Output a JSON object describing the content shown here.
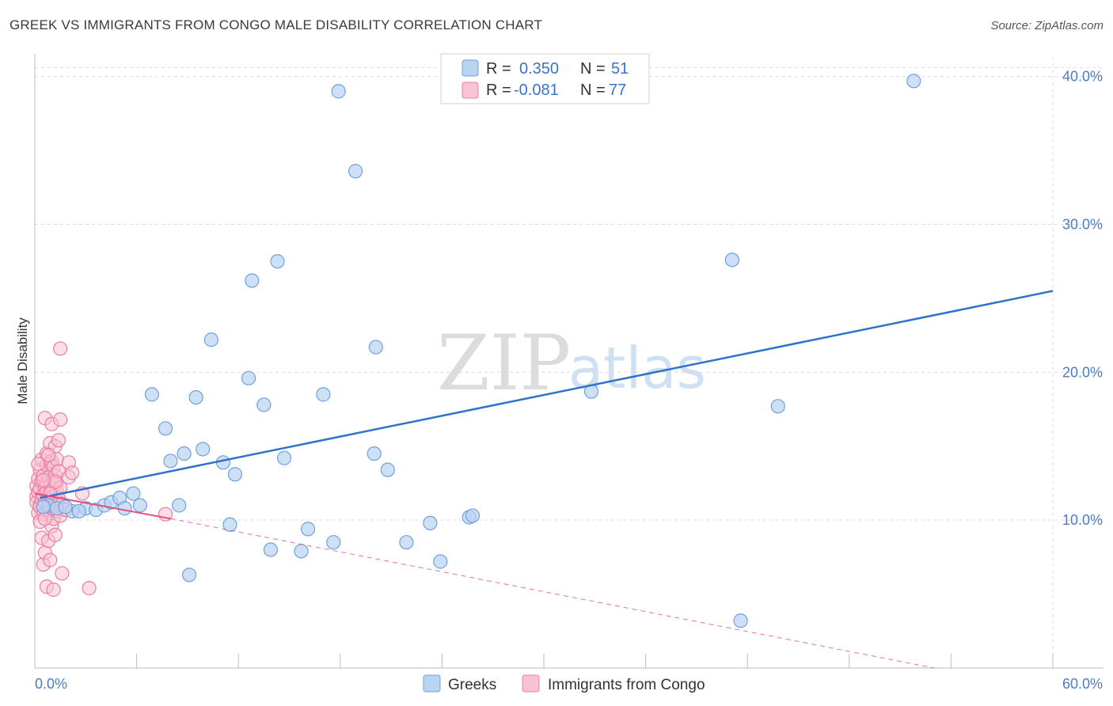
{
  "title": "GREEK VS IMMIGRANTS FROM CONGO MALE DISABILITY CORRELATION CHART",
  "source": "Source: ZipAtlas.com",
  "watermark": {
    "zip": "ZIP",
    "atlas": "atlas"
  },
  "legend_top": [
    {
      "r_label": "R = ",
      "r_value": "0.350",
      "n_label": "N = ",
      "n_value": "51"
    },
    {
      "r_label": "R = ",
      "r_value": "-0.081",
      "n_label": "N = ",
      "n_value": "77"
    }
  ],
  "legend_bottom": [
    "Greeks",
    "Immigrants from Congo"
  ],
  "colors": {
    "greeks_fill": "#b9d3f2",
    "greeks_stroke": "#6fa0dd",
    "greeks_line": "#2f72cc",
    "congo_fill": "#f8c3d3",
    "congo_stroke": "#ea7fa0",
    "congo_line": "#e0507e",
    "grid": "#dddddd",
    "axis_text": "#4a7cc7"
  },
  "chart_data": {
    "type": "scatter",
    "title": "GREEK VS IMMIGRANTS FROM CONGO MALE DISABILITY CORRELATION CHART",
    "xlabel": "",
    "ylabel": "Male Disability",
    "xlim": [
      0,
      60
    ],
    "ylim": [
      0,
      41
    ],
    "x_tick_labels": [
      "0.0%",
      "60.0%"
    ],
    "y_ticks": [
      10,
      20,
      30,
      40
    ],
    "y_tick_labels": [
      "10.0%",
      "20.0%",
      "30.0%",
      "40.0%"
    ],
    "series": [
      {
        "name": "Greeks",
        "R": 0.35,
        "N": 51,
        "trend": {
          "x": [
            0.3,
            60
          ],
          "y": [
            11.5,
            25.5
          ]
        },
        "points": [
          [
            0.8,
            11.0
          ],
          [
            1.3,
            10.8
          ],
          [
            2.2,
            10.6
          ],
          [
            3.0,
            10.8
          ],
          [
            3.6,
            10.7
          ],
          [
            4.1,
            11.0
          ],
          [
            4.5,
            11.2
          ],
          [
            5.0,
            11.5
          ],
          [
            5.3,
            10.8
          ],
          [
            5.8,
            11.8
          ],
          [
            6.2,
            11.0
          ],
          [
            6.9,
            18.5
          ],
          [
            7.7,
            16.2
          ],
          [
            8.0,
            14.0
          ],
          [
            8.5,
            11.0
          ],
          [
            8.8,
            14.5
          ],
          [
            9.1,
            6.3
          ],
          [
            9.5,
            18.3
          ],
          [
            9.9,
            14.8
          ],
          [
            10.4,
            22.2
          ],
          [
            11.1,
            13.9
          ],
          [
            11.5,
            9.7
          ],
          [
            11.8,
            13.1
          ],
          [
            12.6,
            19.6
          ],
          [
            12.8,
            26.2
          ],
          [
            13.5,
            17.8
          ],
          [
            13.9,
            8.0
          ],
          [
            14.3,
            27.5
          ],
          [
            14.7,
            14.2
          ],
          [
            15.7,
            7.9
          ],
          [
            16.1,
            9.4
          ],
          [
            17.0,
            18.5
          ],
          [
            17.6,
            8.5
          ],
          [
            17.9,
            39.0
          ],
          [
            18.9,
            33.6
          ],
          [
            20.0,
            14.5
          ],
          [
            20.1,
            21.7
          ],
          [
            20.8,
            13.4
          ],
          [
            21.9,
            8.5
          ],
          [
            23.3,
            9.8
          ],
          [
            23.9,
            7.2
          ],
          [
            25.6,
            10.2
          ],
          [
            25.8,
            10.3
          ],
          [
            32.8,
            18.7
          ],
          [
            41.1,
            27.6
          ],
          [
            41.6,
            3.2
          ],
          [
            43.8,
            17.7
          ],
          [
            51.8,
            39.7
          ],
          [
            2.6,
            10.6
          ],
          [
            1.8,
            10.9
          ],
          [
            0.5,
            10.9
          ]
        ]
      },
      {
        "name": "Immigrants from Congo",
        "R": -0.081,
        "N": 77,
        "trend": {
          "x": [
            0.0,
            8.0
          ],
          "y": [
            11.8,
            10.1
          ]
        },
        "trend_ext": {
          "x": [
            8.0,
            53.0
          ],
          "y": [
            10.1,
            0.0
          ]
        },
        "points": [
          [
            0.1,
            11.6
          ],
          [
            0.1,
            12.3
          ],
          [
            0.1,
            11.2
          ],
          [
            0.2,
            10.5
          ],
          [
            0.2,
            12.8
          ],
          [
            0.2,
            11.9
          ],
          [
            0.3,
            13.4
          ],
          [
            0.3,
            11.0
          ],
          [
            0.3,
            12.1
          ],
          [
            0.3,
            10.9
          ],
          [
            0.4,
            14.1
          ],
          [
            0.4,
            11.4
          ],
          [
            0.4,
            12.6
          ],
          [
            0.4,
            8.8
          ],
          [
            0.5,
            13.0
          ],
          [
            0.5,
            11.7
          ],
          [
            0.5,
            10.4
          ],
          [
            0.5,
            7.0
          ],
          [
            0.6,
            16.9
          ],
          [
            0.6,
            12.2
          ],
          [
            0.6,
            11.2
          ],
          [
            0.6,
            7.8
          ],
          [
            0.7,
            14.5
          ],
          [
            0.7,
            13.7
          ],
          [
            0.7,
            12.5
          ],
          [
            0.7,
            11.9
          ],
          [
            0.7,
            5.5
          ],
          [
            0.8,
            12.9
          ],
          [
            0.8,
            11.5
          ],
          [
            0.8,
            10.7
          ],
          [
            0.8,
            8.6
          ],
          [
            0.9,
            15.2
          ],
          [
            0.9,
            13.9
          ],
          [
            0.9,
            12.4
          ],
          [
            0.9,
            7.3
          ],
          [
            1.0,
            16.5
          ],
          [
            1.0,
            14.0
          ],
          [
            1.0,
            12.0
          ],
          [
            1.0,
            11.0
          ],
          [
            1.0,
            9.6
          ],
          [
            1.1,
            13.6
          ],
          [
            1.1,
            12.7
          ],
          [
            1.1,
            11.6
          ],
          [
            1.1,
            10.1
          ],
          [
            1.1,
            5.3
          ],
          [
            1.2,
            15.0
          ],
          [
            1.2,
            13.0
          ],
          [
            1.2,
            11.2
          ],
          [
            1.2,
            9.0
          ],
          [
            1.3,
            14.1
          ],
          [
            1.3,
            12.5
          ],
          [
            1.3,
            11.9
          ],
          [
            1.3,
            10.6
          ],
          [
            1.4,
            15.4
          ],
          [
            1.4,
            13.3
          ],
          [
            1.4,
            11.5
          ],
          [
            1.5,
            16.8
          ],
          [
            1.5,
            12.2
          ],
          [
            1.5,
            10.3
          ],
          [
            1.5,
            21.6
          ],
          [
            1.6,
            11.1
          ],
          [
            1.6,
            6.4
          ],
          [
            1.8,
            10.7
          ],
          [
            2.0,
            13.9
          ],
          [
            2.0,
            12.9
          ],
          [
            2.2,
            13.2
          ],
          [
            2.8,
            11.8
          ],
          [
            3.2,
            5.4
          ],
          [
            7.7,
            10.4
          ],
          [
            0.2,
            13.8
          ],
          [
            0.3,
            9.9
          ],
          [
            0.6,
            10.1
          ],
          [
            0.8,
            14.4
          ],
          [
            1.0,
            10.8
          ],
          [
            1.2,
            12.6
          ],
          [
            0.5,
            12.7
          ],
          [
            0.9,
            11.8
          ]
        ]
      }
    ]
  }
}
